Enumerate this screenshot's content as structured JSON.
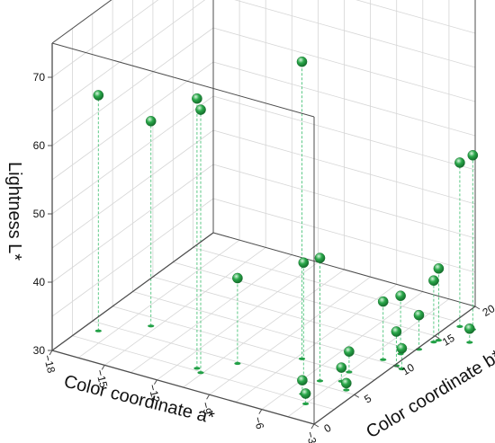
{
  "chart_data": {
    "type": "scatter3d",
    "x_axis": {
      "label": "Color coordinate a*",
      "ticks": [
        -18,
        -15,
        -12,
        -9,
        -6,
        -3
      ],
      "range": [
        -18,
        -3
      ]
    },
    "y_axis": {
      "label": "Color coordinate b*",
      "ticks": [
        0,
        5,
        10,
        15,
        20
      ],
      "range": [
        0,
        20
      ]
    },
    "z_axis": {
      "label": "Lightness L*",
      "ticks": [
        30,
        40,
        50,
        60,
        70
      ],
      "range": [
        30,
        75
      ]
    },
    "grid": true,
    "drop_lines": true,
    "colors": {
      "marker": "#2aa84a",
      "marker_highlight": "#d8f5de",
      "marker_shadow": "#136a2a",
      "drop_line": "#4cc47a",
      "floor_marker": "#22a046",
      "grid": "#d6d6d6",
      "frame": "#4d4d4d"
    },
    "points": [
      {
        "a": -17.2,
        "b": 4.0,
        "L": 64.5
      },
      {
        "a": -15.3,
        "b": 6.4,
        "L": 60.0
      },
      {
        "a": -11.0,
        "b": 2.8,
        "L": 69.5
      },
      {
        "a": -10.6,
        "b": 2.4,
        "L": 68.5
      },
      {
        "a": -9.6,
        "b": 4.8,
        "L": 42.5
      },
      {
        "a": -7.2,
        "b": 7.6,
        "L": 73.5
      },
      {
        "a": -6.0,
        "b": 5.2,
        "L": 47.0
      },
      {
        "a": -5.2,
        "b": 5.5,
        "L": 48.0
      },
      {
        "a": -4.5,
        "b": 2.2,
        "L": 31.5
      },
      {
        "a": -5.2,
        "b": 3.3,
        "L": 32.0
      },
      {
        "a": -4.3,
        "b": 6.2,
        "L": 32.0
      },
      {
        "a": -4.5,
        "b": 7.6,
        "L": 33.0
      },
      {
        "a": -3.6,
        "b": 5.3,
        "L": 31.0
      },
      {
        "a": -3.8,
        "b": 10.3,
        "L": 38.5
      },
      {
        "a": -3.4,
        "b": 11.6,
        "L": 38.5
      },
      {
        "a": -2.9,
        "b": 10.0,
        "L": 35.0
      },
      {
        "a": -2.9,
        "b": 12.8,
        "L": 35.0
      },
      {
        "a": -2.7,
        "b": 14.2,
        "L": 39.0
      },
      {
        "a": -2.5,
        "b": 9.8,
        "L": 33.0
      },
      {
        "a": -2.6,
        "b": 14.6,
        "L": 40.5
      },
      {
        "a": -2.5,
        "b": 17.0,
        "L": 54.0
      },
      {
        "a": -1.8,
        "b": 17.1,
        "L": 55.5
      },
      {
        "a": -1.2,
        "b": 15.4,
        "L": 32.0
      }
    ]
  }
}
